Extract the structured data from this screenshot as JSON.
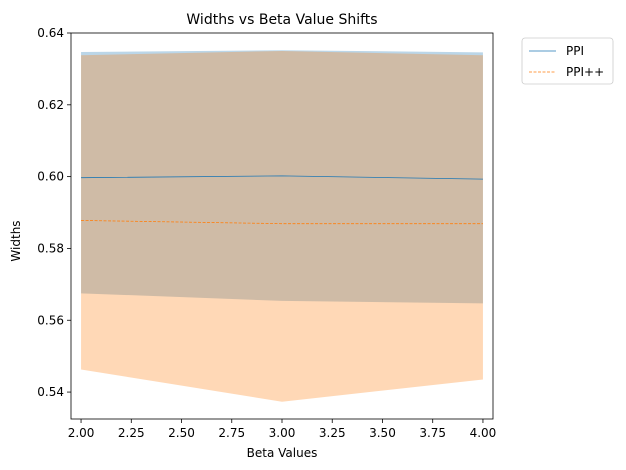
{
  "chart_data": {
    "type": "line",
    "title": "Widths vs Beta Value Shifts",
    "xlabel": "Beta Values",
    "ylabel": "Widths",
    "xlim": [
      1.95,
      4.05
    ],
    "ylim": [
      0.5325,
      0.64
    ],
    "x_ticks": [
      "2.00",
      "2.25",
      "2.50",
      "2.75",
      "3.00",
      "3.25",
      "3.50",
      "3.75",
      "4.00"
    ],
    "y_ticks": [
      "0.54",
      "0.56",
      "0.58",
      "0.60",
      "0.62",
      "0.64"
    ],
    "grid": false,
    "legend_position": "outside-top-right",
    "x": [
      2,
      3,
      4
    ],
    "series": [
      {
        "name": "PPI",
        "color": "#1f77b4",
        "line_style": "solid",
        "values": [
          0.5997,
          0.6002,
          0.5993
        ],
        "band_lower": [
          0.5675,
          0.5654,
          0.5647
        ],
        "band_upper": [
          0.6347,
          0.6352,
          0.6346
        ]
      },
      {
        "name": "PPI++",
        "color": "#ff7f0e",
        "line_style": "dashed",
        "values": [
          0.5878,
          0.5869,
          0.5869
        ],
        "band_lower": [
          0.5463,
          0.5373,
          0.5435
        ],
        "band_upper": [
          0.6338,
          0.635,
          0.6338
        ]
      }
    ]
  }
}
